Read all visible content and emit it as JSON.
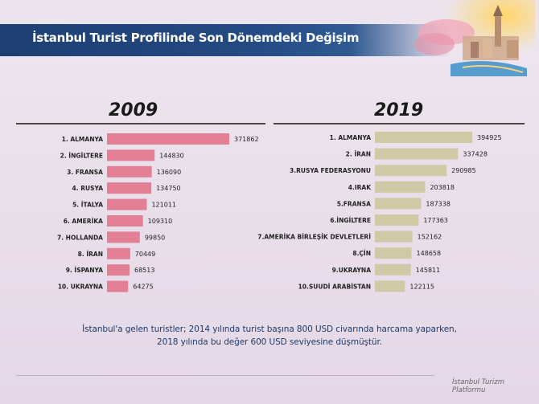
{
  "header": {
    "title": "İstanbul Turist Profilinde Son Dönemdeki Değişim"
  },
  "chart_data": [
    {
      "type": "bar",
      "title": "2009",
      "orientation": "horizontal",
      "color": "#e27f94",
      "categories": [
        "1. ALMANYA",
        "2. İNGİLTERE",
        "3. FRANSA",
        "4. RUSYA",
        "5. İTALYA",
        "6. AMERİKA",
        "7. HOLLANDA",
        "8. İRAN",
        "9. İSPANYA",
        "10. UKRAYNA"
      ],
      "values": [
        371862,
        144830,
        136090,
        134750,
        121011,
        109310,
        99850,
        70449,
        68513,
        64275
      ]
    },
    {
      "type": "bar",
      "title": "2019",
      "orientation": "horizontal",
      "color": "#cfc9a6",
      "categories": [
        "1. ALMANYA",
        "2. İRAN",
        "3.RUSYA FEDERASYONU",
        "4.IRAK",
        "5.FRANSA",
        "6.İNGİLTERE",
        "7.AMERİKA BİRLEŞİK DEVLETLERİ",
        "8.ÇİN",
        "9.UKRAYNA",
        "10.SUUDİ ARABİSTAN"
      ],
      "values": [
        394925,
        337428,
        290985,
        203818,
        187338,
        177363,
        152162,
        148658,
        145811,
        122115
      ]
    }
  ],
  "note": {
    "line1": "İstanbul'a gelen turistler; 2014 yılında turist başına 800 USD civarında harcama yaparken,",
    "line2": "2018 yılında bu değer 600 USD seviyesine düşmüştür."
  },
  "footer": {
    "brand": "İstanbul Turizm Platformu"
  }
}
